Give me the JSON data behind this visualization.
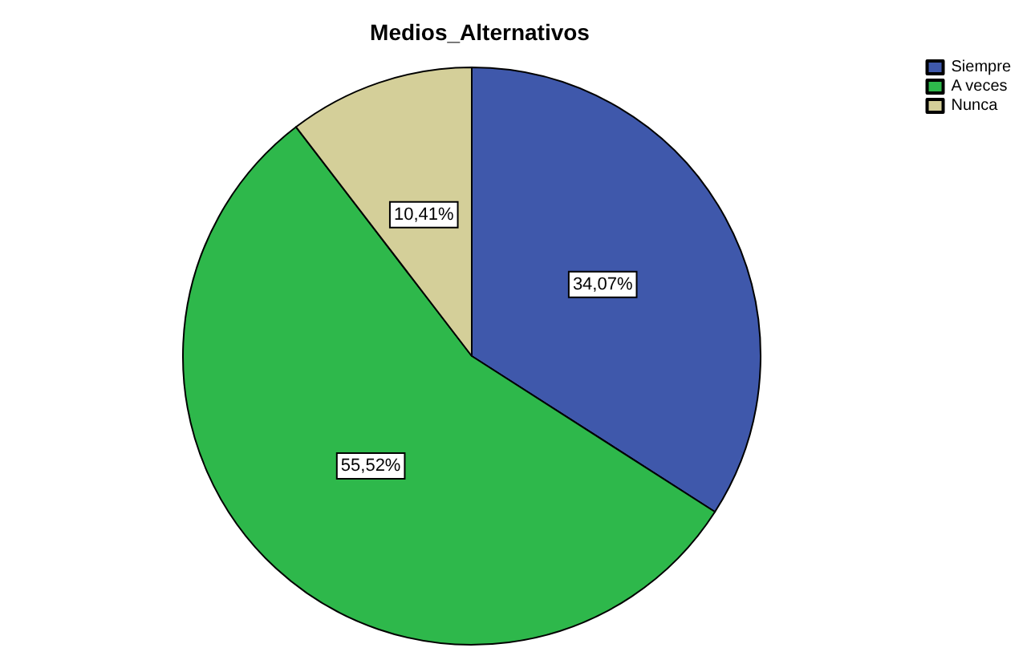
{
  "chart_data": {
    "type": "pie",
    "title": "Medios_Alternativos",
    "categories": [
      "Siempre",
      "A veces",
      "Nunca"
    ],
    "values": [
      34.07,
      55.52,
      10.41
    ],
    "colors": [
      "#3f58ab",
      "#2eb84b",
      "#d4cf99"
    ],
    "value_labels": [
      "34,07%",
      "55,52%",
      "10,41%"
    ],
    "legend": "top right"
  }
}
